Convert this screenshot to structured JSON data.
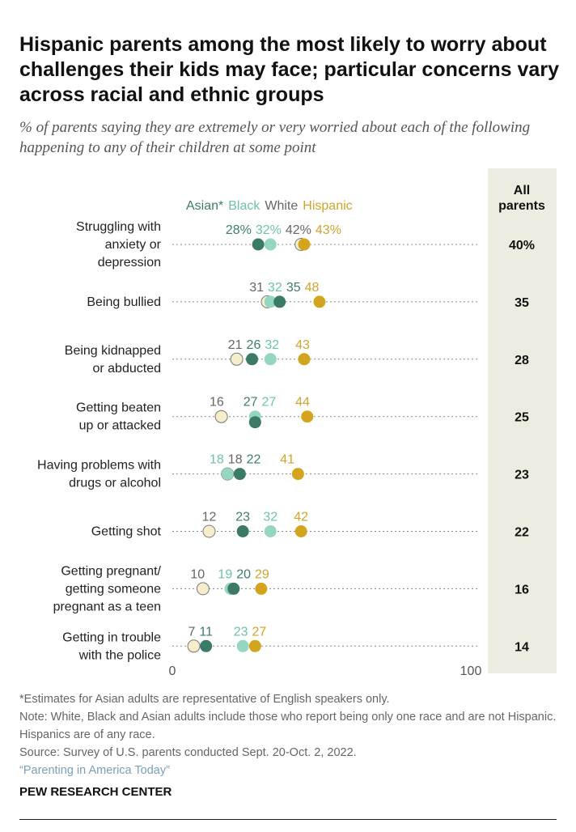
{
  "title": "Hispanic parents among the most likely to worry about challenges their kids may face; particular concerns vary across racial and ethnic groups",
  "subtitle": "% of parents saying they are extremely or very worried about each of the following happening to any of their children at some point",
  "notes": {
    "asterisk": "*Estimates for Asian adults are representative of English speakers only.",
    "note": "Note: White, Black and Asian adults include those who report being only one race and are not Hispanic. Hispanics are of any race.",
    "source": "Source: Survey of U.S. parents conducted Sept. 20-Oct. 2, 2022.",
    "report": "“Parenting in America Today”"
  },
  "brand": "PEW RESEARCH CENTER",
  "chart_data": {
    "type": "dot",
    "xlim": [
      0,
      100
    ],
    "x_ticks": [
      "0",
      "100"
    ],
    "legend_placement": "top",
    "all_parents_header": "All parents",
    "series": [
      {
        "name": "Asian*",
        "color": "#3b7a66",
        "text_color": "#3d7d68",
        "values": [
          28,
          35,
          26,
          27,
          22,
          23,
          20,
          11
        ]
      },
      {
        "name": "Black",
        "color": "#95d6c0",
        "text_color": "#6cc3a6",
        "values": [
          32,
          32,
          32,
          27,
          18,
          32,
          19,
          23
        ]
      },
      {
        "name": "White",
        "color": "#f6edcc",
        "text_color": "#666666",
        "values": [
          42,
          31,
          21,
          16,
          18,
          12,
          10,
          7
        ]
      },
      {
        "name": "Hispanic",
        "color": "#d3a51f",
        "text_color": "#d1a32a",
        "values": [
          43,
          48,
          43,
          44,
          41,
          42,
          29,
          27
        ]
      }
    ],
    "categories": [
      "Struggling with anxiety or depression",
      "Being bullied",
      "Being kidnapped or abducted",
      "Getting beaten up or attacked",
      "Having problems with drugs or alcohol",
      "Getting shot",
      "Getting pregnant/ getting someone pregnant as a teen",
      "Getting in trouble with the police"
    ],
    "category_lines": [
      [
        "Struggling with",
        "anxiety or",
        "depression"
      ],
      [
        "Being bullied"
      ],
      [
        "Being kidnapped",
        "or abducted"
      ],
      [
        "Getting beaten",
        "up or attacked"
      ],
      [
        "Having problems with",
        "drugs or alcohol"
      ],
      [
        "Getting shot"
      ],
      [
        "Getting pregnant/",
        "getting someone",
        "pregnant as a teen"
      ],
      [
        "Getting in trouble",
        "with the police"
      ]
    ],
    "all_parents": [
      40,
      35,
      28,
      25,
      23,
      22,
      16,
      14
    ],
    "first_row_percent_suffix": "%"
  }
}
